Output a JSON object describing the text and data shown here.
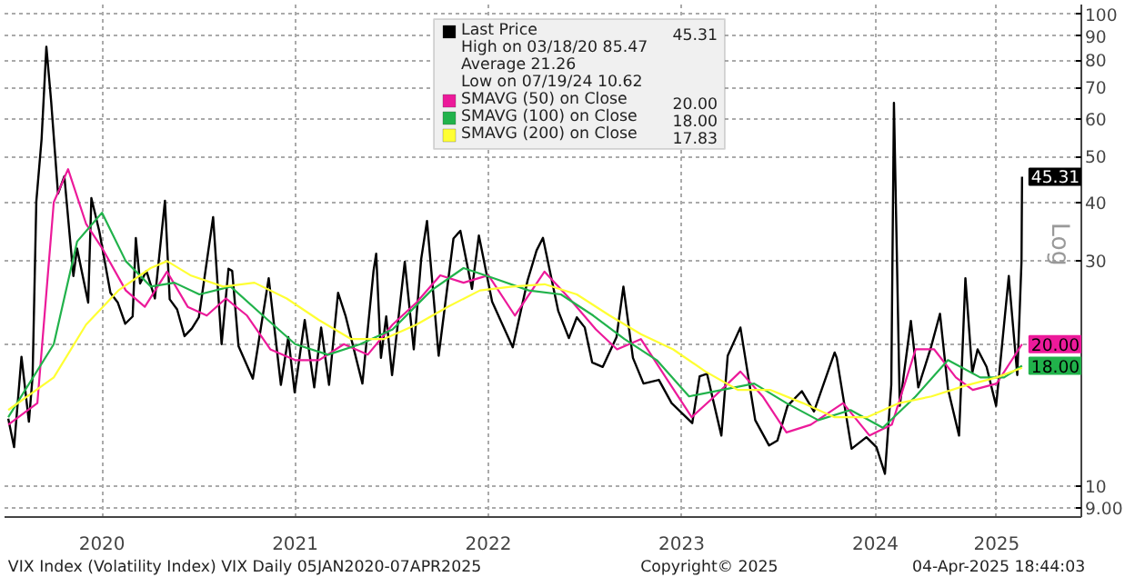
{
  "chart_data": {
    "type": "line",
    "xlim": [
      "2019-12-30",
      "2025-07-25"
    ],
    "xticks": [
      {
        "value": "2020-07-01",
        "label": "2020"
      },
      {
        "value": "2021-07-01",
        "label": "2021"
      },
      {
        "value": "2022-07-01",
        "label": "2022"
      },
      {
        "value": "2023-07-01",
        "label": "2023"
      },
      {
        "value": "2024-07-01",
        "label": "2024"
      },
      {
        "value": "2025-02-15",
        "label": "2025"
      }
    ],
    "ylim": [
      8.6,
      105
    ],
    "log": true,
    "yticks": [
      {
        "value": 9,
        "label": "9.00"
      },
      10,
      {
        "value": 20,
        "label": null
      },
      30,
      40,
      50,
      60,
      70,
      80,
      90,
      100
    ],
    "grid": true,
    "legend": "top",
    "series": [
      {
        "name": "Last Price",
        "color": "#000000",
        "x": [
          "2020-01-06",
          "2020-01-17",
          "2020-01-31",
          "2020-02-14",
          "2020-02-21",
          "2020-02-28",
          "2020-03-09",
          "2020-03-18",
          "2020-03-27",
          "2020-04-09",
          "2020-04-21",
          "2020-05-08",
          "2020-05-15",
          "2020-06-05",
          "2020-06-11",
          "2020-06-26",
          "2020-07-17",
          "2020-07-31",
          "2020-08-14",
          "2020-08-28",
          "2020-09-03",
          "2020-09-11",
          "2020-09-23",
          "2020-10-09",
          "2020-10-28",
          "2020-11-06",
          "2020-11-20",
          "2020-12-04",
          "2020-12-18",
          "2020-12-31",
          "2021-01-27",
          "2021-02-12",
          "2021-02-25",
          "2021-03-04",
          "2021-03-16",
          "2021-04-12",
          "2021-05-12",
          "2021-06-04",
          "2021-06-18",
          "2021-06-30",
          "2021-07-19",
          "2021-08-06",
          "2021-08-19",
          "2021-09-03",
          "2021-09-20",
          "2021-10-04",
          "2021-11-05",
          "2021-11-26",
          "2021-12-01",
          "2021-12-10",
          "2021-12-20",
          "2021-12-31",
          "2022-01-24",
          "2022-02-10",
          "2022-02-24",
          "2022-03-07",
          "2022-03-29",
          "2022-04-26",
          "2022-05-09",
          "2022-05-31",
          "2022-06-13",
          "2022-07-08",
          "2022-08-16",
          "2022-09-13",
          "2022-09-30",
          "2022-10-12",
          "2022-11-10",
          "2022-11-30",
          "2022-12-15",
          "2022-12-30",
          "2023-01-13",
          "2023-02-02",
          "2023-02-28",
          "2023-03-13",
          "2023-03-31",
          "2023-04-20",
          "2023-05-19",
          "2023-06-12",
          "2023-07-21",
          "2023-08-04",
          "2023-08-18",
          "2023-09-14",
          "2023-09-26",
          "2023-10-20",
          "2023-11-17",
          "2023-12-13",
          "2023-12-29",
          "2024-01-17",
          "2024-02-13",
          "2024-03-07",
          "2024-04-15",
          "2024-04-19",
          "2024-05-17",
          "2024-06-14",
          "2024-07-03",
          "2024-07-19",
          "2024-07-31",
          "2024-08-05",
          "2024-08-16",
          "2024-09-06",
          "2024-09-20",
          "2024-10-14",
          "2024-10-31",
          "2024-11-05",
          "2024-11-15",
          "2024-12-06",
          "2024-12-18",
          "2024-12-31",
          "2025-01-10",
          "2025-01-27",
          "2025-02-14",
          "2025-03-10",
          "2025-03-11",
          "2025-03-26",
          "2025-04-03",
          "2025-04-04"
        ],
        "values": [
          13.9,
          12.1,
          18.8,
          13.7,
          17.1,
          40.1,
          54.5,
          85.47,
          65.5,
          41.7,
          45.4,
          27.9,
          31.9,
          24.5,
          40.8,
          34.7,
          25.7,
          24.5,
          22.1,
          22.9,
          33.6,
          26.9,
          28.6,
          25.0,
          40.3,
          24.9,
          23.7,
          20.8,
          21.6,
          22.8,
          37.2,
          20.0,
          28.9,
          28.6,
          19.8,
          16.9,
          27.6,
          16.4,
          20.7,
          15.8,
          22.5,
          16.2,
          21.7,
          16.4,
          25.7,
          23.0,
          16.5,
          28.6,
          31.1,
          18.7,
          22.9,
          17.2,
          29.9,
          19.5,
          30.3,
          36.5,
          18.9,
          33.5,
          34.8,
          26.2,
          34.0,
          24.6,
          19.7,
          27.3,
          31.6,
          33.6,
          23.5,
          20.6,
          22.8,
          21.7,
          18.3,
          17.9,
          20.7,
          26.5,
          18.7,
          16.5,
          16.8,
          15.0,
          13.6,
          17.1,
          17.3,
          12.8,
          18.9,
          21.7,
          13.8,
          12.2,
          12.5,
          14.8,
          15.9,
          14.4,
          19.2,
          18.7,
          12.0,
          12.7,
          12.1,
          10.62,
          16.4,
          65.0,
          14.8,
          22.4,
          16.2,
          19.7,
          23.2,
          20.5,
          16.1,
          12.8,
          27.6,
          17.4,
          19.5,
          17.9,
          14.8,
          27.9,
          26.9,
          17.2,
          30.0,
          45.31
        ],
        "value_labels": [
          null,
          null,
          null,
          null,
          null,
          null,
          null,
          null,
          null,
          null,
          null,
          null,
          null,
          null,
          null,
          null,
          null,
          null,
          null,
          null,
          null,
          null,
          null,
          null,
          null,
          null,
          null,
          null,
          null,
          null,
          null,
          null,
          null,
          null,
          null,
          null,
          null,
          null,
          null,
          null,
          null,
          null,
          null,
          null,
          null,
          null,
          null,
          null,
          null,
          null,
          null,
          null,
          null,
          null,
          null,
          null,
          null,
          null,
          null,
          null,
          null,
          null,
          null,
          null,
          null,
          null,
          null,
          null,
          null,
          null,
          null,
          null,
          null,
          null,
          null,
          null,
          null,
          null,
          null,
          null,
          null,
          null,
          null,
          null,
          null,
          null,
          null,
          null,
          null,
          null,
          null,
          null,
          null,
          null,
          null,
          null,
          null,
          null,
          null,
          null,
          null,
          null,
          null,
          null,
          null,
          null,
          null,
          null,
          null,
          null,
          null,
          null,
          null,
          null,
          null,
          "45.31"
        ]
      },
      {
        "name": "SMAVG (50)  on Close",
        "color": "#ec1a9a",
        "x": [
          "2020-01-06",
          "2020-03-01",
          "2020-04-01",
          "2020-04-28",
          "2020-06-01",
          "2020-07-01",
          "2020-08-15",
          "2020-09-20",
          "2020-11-01",
          "2020-12-10",
          "2021-01-15",
          "2021-02-20",
          "2021-04-01",
          "2021-05-15",
          "2021-07-01",
          "2021-08-15",
          "2021-10-01",
          "2021-11-15",
          "2022-01-01",
          "2022-02-15",
          "2022-04-01",
          "2022-05-15",
          "2022-07-01",
          "2022-08-20",
          "2022-10-15",
          "2022-12-01",
          "2023-01-20",
          "2023-03-01",
          "2023-04-15",
          "2023-06-01",
          "2023-07-20",
          "2023-09-01",
          "2023-10-20",
          "2023-12-01",
          "2024-01-15",
          "2024-03-01",
          "2024-05-01",
          "2024-06-20",
          "2024-08-01",
          "2024-09-15",
          "2024-10-20",
          "2024-11-30",
          "2025-01-01",
          "2025-02-15",
          "2025-04-04"
        ],
        "values": [
          13.5,
          15,
          40,
          47,
          36,
          32,
          26,
          24,
          28.5,
          24,
          23,
          25,
          23,
          19.5,
          18.5,
          18.5,
          20,
          19,
          22,
          24.5,
          28,
          27,
          28,
          23,
          28.5,
          25,
          21.5,
          19.5,
          20.5,
          17,
          14,
          15.5,
          17.5,
          15.5,
          13,
          13.5,
          15,
          12.8,
          13.5,
          19.5,
          19.5,
          17,
          16,
          16.5,
          20
        ],
        "value_labels": [
          null,
          null,
          null,
          null,
          null,
          null,
          null,
          null,
          null,
          null,
          null,
          null,
          null,
          null,
          null,
          null,
          null,
          null,
          null,
          null,
          null,
          null,
          null,
          null,
          null,
          null,
          null,
          null,
          null,
          null,
          null,
          null,
          null,
          null,
          null,
          null,
          null,
          null,
          null,
          null,
          null,
          null,
          null,
          null,
          "20.00"
        ]
      },
      {
        "name": "SMAVG (100)  on Close",
        "color": "#21b24b",
        "x": [
          "2020-01-06",
          "2020-04-01",
          "2020-05-15",
          "2020-07-01",
          "2020-08-15",
          "2020-10-01",
          "2020-11-15",
          "2021-01-01",
          "2021-03-01",
          "2021-05-01",
          "2021-07-01",
          "2021-09-01",
          "2021-11-01",
          "2022-01-01",
          "2022-03-15",
          "2022-05-15",
          "2022-07-15",
          "2022-09-15",
          "2022-11-15",
          "2023-01-15",
          "2023-03-15",
          "2023-05-15",
          "2023-07-15",
          "2023-09-15",
          "2023-11-15",
          "2024-01-15",
          "2024-03-15",
          "2024-05-15",
          "2024-07-15",
          "2024-09-15",
          "2024-11-15",
          "2025-01-15",
          "2025-03-01",
          "2025-04-04"
        ],
        "values": [
          14,
          20,
          33,
          38,
          30,
          26.5,
          27,
          25.5,
          26.5,
          23,
          20,
          19,
          20,
          21.5,
          26,
          29,
          27.5,
          26,
          25.5,
          23,
          20.5,
          18.5,
          15.5,
          16,
          16.5,
          15,
          13.8,
          14.5,
          13.3,
          15.5,
          18.5,
          17,
          17,
          18
        ],
        "value_labels": [
          null,
          null,
          null,
          null,
          null,
          null,
          null,
          null,
          null,
          null,
          null,
          null,
          null,
          null,
          null,
          null,
          null,
          null,
          null,
          null,
          null,
          null,
          null,
          null,
          null,
          null,
          null,
          null,
          null,
          null,
          null,
          null,
          null,
          "18.00"
        ]
      },
      {
        "name": "SMAVG (200)  on Close",
        "color": "#ffff33",
        "x": [
          "2020-01-06",
          "2020-04-01",
          "2020-06-01",
          "2020-08-01",
          "2020-10-01",
          "2020-11-01",
          "2020-12-15",
          "2021-02-15",
          "2021-04-15",
          "2021-06-15",
          "2021-08-15",
          "2021-10-15",
          "2021-12-15",
          "2022-02-15",
          "2022-04-15",
          "2022-06-15",
          "2022-08-15",
          "2022-10-15",
          "2022-12-15",
          "2023-02-15",
          "2023-04-15",
          "2023-06-15",
          "2023-08-15",
          "2023-10-15",
          "2023-12-15",
          "2024-02-15",
          "2024-04-15",
          "2024-06-15",
          "2024-08-15",
          "2024-10-15",
          "2024-12-15",
          "2025-02-15",
          "2025-04-04"
        ],
        "values": [
          14.5,
          17,
          22,
          26,
          29,
          30,
          28,
          26.5,
          27,
          25,
          22.5,
          20.5,
          20.5,
          22,
          24,
          26,
          26.5,
          26.8,
          25.5,
          23,
          21,
          19.5,
          17.5,
          16,
          16,
          15,
          14,
          14,
          15,
          15.5,
          16.3,
          17,
          17.83
        ]
      }
    ],
    "annotations": [
      "45.31",
      "20.00",
      "18.00",
      "17.83",
      "High on 03/18/20  85.47",
      "Average  21.26",
      "Low on 07/19/24  10.62",
      "Log",
      "VIX Index (Volatility Index) VIX  Daily 05JAN2020-07APR2025",
      "Copyright© 2025",
      "04-Apr-2025 18:44:03"
    ]
  }
}
